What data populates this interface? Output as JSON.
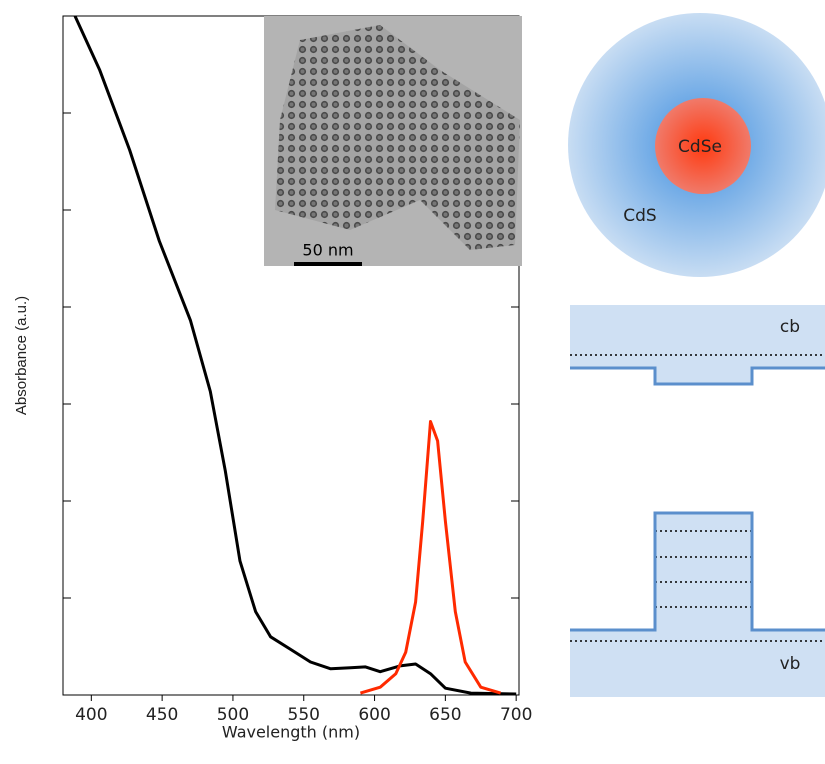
{
  "chart_data": {
    "type": "line",
    "xlabel": "Wavelength (nm)",
    "ylabel": "Absorbance (a.u.)",
    "xlim": [
      380,
      702
    ],
    "xticks": [
      400,
      450,
      500,
      550,
      600,
      650,
      700
    ],
    "ylim": [
      0,
      7
    ],
    "yticks": [
      0,
      1,
      2,
      3,
      4,
      5,
      6
    ],
    "series": [
      {
        "color": "#000000",
        "x": [
          388.5,
          406,
          427,
          448,
          470,
          484,
          494.6,
          505,
          516,
          526.6,
          540.7,
          554.8,
          569,
          583,
          593.6,
          604,
          618,
          629,
          639.5,
          650,
          668,
          700
        ],
        "values": [
          7.0,
          6.44,
          5.62,
          4.68,
          3.86,
          3.13,
          2.31,
          1.38,
          0.86,
          0.6,
          0.47,
          0.34,
          0.27,
          0.28,
          0.29,
          0.24,
          0.3,
          0.32,
          0.22,
          0.07,
          0.02,
          0.01
        ]
      },
      {
        "color": "#ff2a00",
        "x": [
          590,
          604,
          615,
          622,
          629,
          634,
          639.5,
          644.5,
          650,
          657,
          664,
          675,
          689
        ],
        "values": [
          0.02,
          0.08,
          0.22,
          0.44,
          0.96,
          1.79,
          2.82,
          2.62,
          1.79,
          0.86,
          0.34,
          0.08,
          0.02
        ]
      }
    ]
  },
  "inset": {
    "scale_bar_label": "50 nm"
  },
  "diagram": {
    "core_label": "CdSe",
    "shell_label": "CdS",
    "conduction_band_label": "cb",
    "valence_band_label": "vb"
  }
}
